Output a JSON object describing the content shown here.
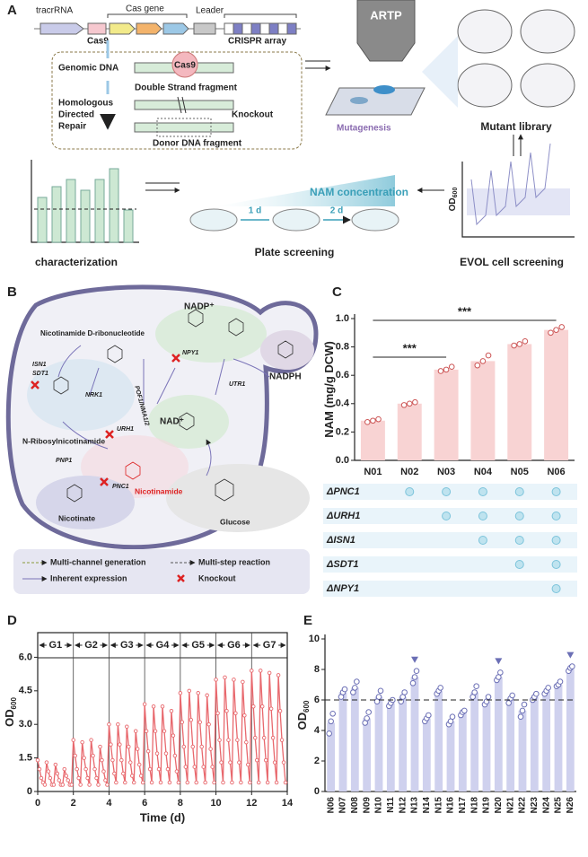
{
  "panel_a": {
    "label": "A",
    "tracr_rna": "tracrRNA",
    "cas_gene": "Cas gene",
    "leader": "Leader",
    "cas9": "Cas9",
    "crispr_array": "CRISPR array",
    "genomic_dna": "Genomic DNA",
    "cas9_protein": "Cas9",
    "double_strand": "Double Strand fragment",
    "hdr": [
      "Homologous",
      "Directed",
      "Repair"
    ],
    "knockout": "Knockout",
    "donor": "Donor DNA fragment",
    "artp": "ARTP",
    "mutagenesis": "Mutagenesis",
    "mutant_library": "Mutant library",
    "nam_concentration": "NAM concentration",
    "day1": "1 d",
    "day2": "2 d",
    "plate_screening": "Plate screening",
    "characterization": "characterization",
    "evol_axis": "OD",
    "evol_axis_sub": "600",
    "evol": "EVOL cell screening"
  },
  "panel_b": {
    "label": "B",
    "nadp": "NADP⁺",
    "nmn": "Nicotinamide D-ribonucleotide",
    "isn1": "ISN1",
    "sdt1": "SDT1",
    "nrk1": "NRK1",
    "pof1": "POF1/NMA1/2",
    "npy1": "NPY1",
    "utr1": "UTR1",
    "nadph": "NADPH",
    "nad": "NAD⁺",
    "urh1": "URH1",
    "nr": "N-Ribosylnicotinamide",
    "pnp1": "PNP1",
    "nicotinamide": "Nicotinamide",
    "pnc1": "PNC1",
    "nicotinate": "Nicotinate",
    "glucose": "Glucose",
    "legend": [
      "Multi-channel generation",
      "Multi-step reaction",
      "Inherent expression",
      "Knockout"
    ]
  },
  "chart_data": [
    {
      "type": "bar",
      "label": "C",
      "ylabel": "NAM (mg/g DCW)",
      "categories": [
        "N01",
        "N02",
        "N03",
        "N04",
        "N05",
        "N06"
      ],
      "values": [
        0.28,
        0.4,
        0.64,
        0.7,
        0.82,
        0.92
      ],
      "replicates": [
        [
          0.27,
          0.28,
          0.29
        ],
        [
          0.39,
          0.4,
          0.41
        ],
        [
          0.63,
          0.64,
          0.66
        ],
        [
          0.67,
          0.7,
          0.74
        ],
        [
          0.81,
          0.82,
          0.84
        ],
        [
          0.9,
          0.92,
          0.94
        ]
      ],
      "color": "#f8d3d3",
      "ylim": [
        0,
        1
      ],
      "yticks": [
        {
          "value": 0,
          "label": "0.0"
        },
        0.2,
        0.4,
        0.6,
        0.8,
        {
          "value": 1,
          "label": "1.0"
        }
      ],
      "annotations": [
        "***",
        "***"
      ],
      "knockouts": [
        {
          "label": "ΔPNC1",
          "present": [
            false,
            true,
            true,
            true,
            true,
            true
          ]
        },
        {
          "label": "ΔURH1",
          "present": [
            false,
            false,
            true,
            true,
            true,
            true
          ]
        },
        {
          "label": "ΔISN1",
          "present": [
            false,
            false,
            false,
            true,
            true,
            true
          ]
        },
        {
          "label": "ΔSDT1",
          "present": [
            false,
            false,
            false,
            false,
            true,
            true
          ]
        },
        {
          "label": "ΔNPY1",
          "present": [
            false,
            false,
            false,
            false,
            false,
            true
          ]
        }
      ]
    },
    {
      "type": "line",
      "label": "D",
      "ylabel": "OD",
      "ylabel_sub": "600",
      "xlabel": "Time (d)",
      "color": "#e8686d",
      "x": [
        0,
        0.1,
        0.2,
        0.3,
        0.4,
        0.5,
        0.6,
        0.7,
        0.8,
        0.9,
        1,
        1.1,
        1.2,
        1.3,
        1.4,
        1.5,
        1.6,
        1.7,
        1.8,
        1.9,
        2,
        2.1,
        2.2,
        2.3,
        2.4,
        2.5,
        2.6,
        2.7,
        2.8,
        2.9,
        3,
        3.1,
        3.2,
        3.3,
        3.4,
        3.5,
        3.6,
        3.7,
        3.8,
        3.9,
        4,
        4.1,
        4.2,
        4.3,
        4.4,
        4.5,
        4.6,
        4.7,
        4.8,
        4.9,
        5,
        5.1,
        5.2,
        5.3,
        5.4,
        5.5,
        5.6,
        5.7,
        5.8,
        5.9,
        6,
        6.1,
        6.2,
        6.3,
        6.4,
        6.5,
        6.6,
        6.7,
        6.8,
        6.9,
        7,
        7.1,
        7.2,
        7.3,
        7.4,
        7.5,
        7.6,
        7.7,
        7.8,
        7.9,
        8,
        8.1,
        8.2,
        8.3,
        8.4,
        8.5,
        8.6,
        8.7,
        8.8,
        8.9,
        9,
        9.1,
        9.2,
        9.3,
        9.4,
        9.5,
        9.6,
        9.7,
        9.8,
        9.9,
        10,
        10.1,
        10.2,
        10.3,
        10.4,
        10.5,
        10.6,
        10.7,
        10.8,
        10.9,
        11,
        11.1,
        11.2,
        11.3,
        11.4,
        11.5,
        11.6,
        11.7,
        11.8,
        11.9,
        12,
        12.1,
        12.2,
        12.3,
        12.4,
        12.5,
        12.6,
        12.7,
        12.8,
        12.9,
        13,
        13.1,
        13.2,
        13.3,
        13.4,
        13.5,
        13.6,
        13.7,
        13.8,
        13.9
      ],
      "values": [
        1.4,
        1.0,
        0.6,
        0.4,
        0.3,
        1.3,
        0.9,
        0.6,
        0.3,
        0.3,
        1.2,
        0.8,
        0.5,
        0.3,
        0.3,
        1.0,
        0.7,
        0.5,
        0.3,
        0.3,
        2.3,
        1.6,
        1.0,
        0.6,
        0.3,
        2.2,
        1.5,
        1.0,
        0.6,
        0.3,
        2.3,
        1.6,
        1.0,
        0.6,
        0.3,
        2.0,
        1.4,
        0.9,
        0.5,
        0.3,
        3.0,
        2.1,
        1.4,
        0.8,
        0.4,
        3.0,
        2.1,
        1.4,
        0.8,
        0.4,
        2.9,
        2.0,
        1.3,
        0.7,
        0.4,
        2.7,
        1.9,
        1.2,
        0.7,
        0.4,
        3.9,
        2.7,
        1.8,
        1.0,
        0.4,
        3.8,
        2.7,
        1.7,
        1.0,
        0.4,
        3.8,
        2.7,
        1.7,
        1.0,
        0.4,
        3.6,
        2.5,
        1.6,
        0.9,
        0.4,
        4.4,
        3.1,
        2.0,
        1.1,
        0.4,
        4.5,
        3.2,
        2.0,
        1.1,
        0.4,
        4.4,
        3.1,
        2.0,
        1.1,
        0.4,
        4.3,
        3.0,
        1.9,
        1.1,
        0.4,
        5.0,
        3.5,
        2.3,
        1.3,
        0.4,
        5.1,
        3.6,
        2.3,
        1.3,
        0.4,
        5.0,
        3.5,
        2.3,
        1.3,
        0.4,
        4.9,
        3.4,
        2.2,
        1.2,
        0.4,
        5.4,
        3.8,
        2.4,
        1.4,
        0.4,
        5.4,
        3.8,
        2.4,
        1.4,
        0.4,
        5.3,
        3.7,
        2.4,
        1.3,
        0.4,
        5.2,
        3.6,
        2.3,
        1.3,
        0.4
      ],
      "xlim": [
        0,
        14
      ],
      "xticks": [
        0,
        2,
        4,
        6,
        8,
        10,
        12,
        14
      ],
      "ylim": [
        0,
        7.1
      ],
      "yticks": [
        0,
        1.5,
        {
          "value": 3,
          "label": "3.0"
        },
        4.5,
        {
          "value": 6,
          "label": "6.0"
        }
      ],
      "generations": [
        {
          "label": "G1",
          "start": 0,
          "end": 2
        },
        {
          "label": "G2",
          "start": 2,
          "end": 4
        },
        {
          "label": "G3",
          "start": 4,
          "end": 6
        },
        {
          "label": "G4",
          "start": 6,
          "end": 8
        },
        {
          "label": "G5",
          "start": 8,
          "end": 10
        },
        {
          "label": "G6",
          "start": 10,
          "end": 12
        },
        {
          "label": "G7",
          "start": 12,
          "end": 14
        }
      ]
    },
    {
      "type": "bar",
      "label": "E",
      "ylabel": "OD",
      "ylabel_sub": "600",
      "color": "#cfd1ee",
      "categories": [
        "N06",
        "N07",
        "N08",
        "N09",
        "N10",
        "N11",
        "N12",
        "N13",
        "N14",
        "N15",
        "N16",
        "N17",
        "N18",
        "N19",
        "N20",
        "N21",
        "N22",
        "N23",
        "N24",
        "N25",
        "N26"
      ],
      "values": [
        4.5,
        6.5,
        6.8,
        4.8,
        6.2,
        5.8,
        6.2,
        7.5,
        4.8,
        6.6,
        4.6,
        5.2,
        6.5,
        5.9,
        7.5,
        6.1,
        5.3,
        6.2,
        6.6,
        7.0,
        8.1
      ],
      "replicates": [
        [
          3.8,
          4.6,
          5.1
        ],
        [
          6.2,
          6.5,
          6.7
        ],
        [
          6.5,
          6.8,
          7.2
        ],
        [
          4.5,
          4.8,
          5.2
        ],
        [
          5.9,
          6.2,
          6.6
        ],
        [
          5.6,
          5.8,
          6.0
        ],
        [
          5.9,
          6.2,
          6.5
        ],
        [
          7.1,
          7.5,
          7.9
        ],
        [
          4.6,
          4.8,
          5.0
        ],
        [
          6.4,
          6.6,
          6.8
        ],
        [
          4.4,
          4.6,
          4.9
        ],
        [
          5.0,
          5.2,
          5.3
        ],
        [
          6.2,
          6.5,
          6.9
        ],
        [
          5.7,
          5.9,
          6.2
        ],
        [
          7.3,
          7.5,
          7.8
        ],
        [
          5.8,
          6.1,
          6.3
        ],
        [
          4.9,
          5.3,
          5.7
        ],
        [
          6.0,
          6.2,
          6.4
        ],
        [
          6.4,
          6.6,
          6.8
        ],
        [
          6.9,
          7.0,
          7.2
        ],
        [
          7.9,
          8.1,
          8.2
        ]
      ],
      "ylim": [
        0,
        10
      ],
      "yticks": [
        0,
        2,
        4,
        6,
        8,
        10
      ],
      "reference_line": 6,
      "highlight": [
        false,
        false,
        false,
        false,
        false,
        false,
        false,
        true,
        false,
        false,
        false,
        false,
        false,
        false,
        true,
        false,
        false,
        false,
        false,
        false,
        true
      ]
    }
  ]
}
